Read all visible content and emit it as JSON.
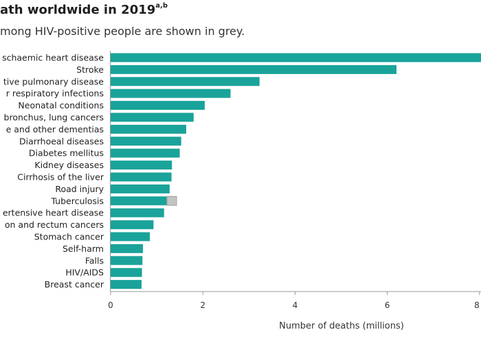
{
  "header": {
    "title_text": "ath worldwide in 2019",
    "title_sup": "a,b",
    "subtitle": "mong HIV-positive people are shown in grey."
  },
  "colors": {
    "bar": "#1aa39a",
    "hiv_positive": "#c4c4c4",
    "axis": "#9a9a9a",
    "text": "#222222"
  },
  "chart_data": {
    "type": "bar",
    "orientation": "horizontal",
    "categories": [
      "schaemic heart disease",
      "Stroke",
      "tive pulmonary disease",
      "r respiratory infections",
      "Neonatal conditions",
      "bronchus, lung cancers",
      "e and other dementias",
      "Diarrhoeal diseases",
      "Diabetes mellitus",
      "Kidney diseases",
      "Cirrhosis of the liver",
      "Road injury",
      "Tuberculosis",
      "ertensive heart disease",
      "on and rectum cancers",
      "Stomach cancer",
      "Self-harm",
      "Falls",
      "HIV/AIDS",
      "Breast cancer"
    ],
    "series": [
      {
        "values": [
          8.9,
          6.2,
          3.23,
          2.6,
          2.04,
          1.8,
          1.64,
          1.53,
          1.5,
          1.33,
          1.32,
          1.28,
          1.22,
          1.16,
          0.93,
          0.85,
          0.7,
          0.69,
          0.68,
          0.67
        ]
      },
      {
        "name": "HIV-positive",
        "values": [
          0,
          0,
          0,
          0,
          0,
          0,
          0,
          0,
          0,
          0,
          0,
          0,
          0.21,
          0,
          0,
          0,
          0,
          0,
          0,
          0
        ]
      }
    ],
    "xlabel": "Number of deaths (millions)",
    "xticks": [
      0,
      2,
      4,
      6,
      8
    ],
    "xlim": [
      0,
      8
    ],
    "grid": false
  }
}
